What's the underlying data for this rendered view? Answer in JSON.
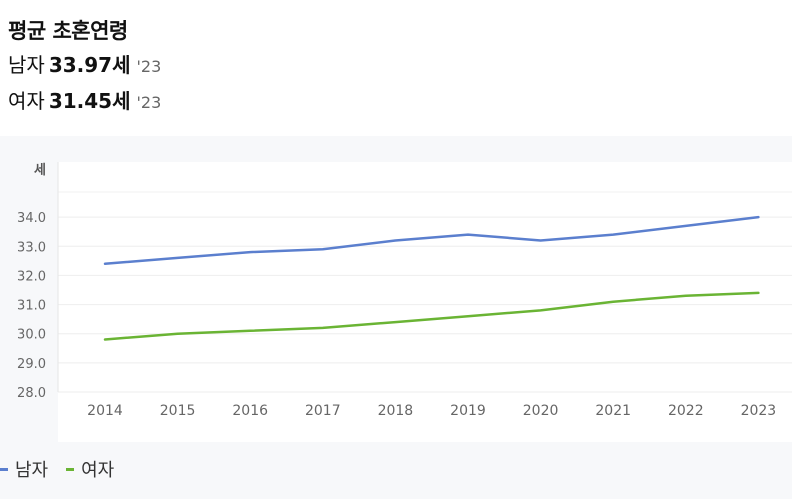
{
  "header": {
    "title": "평균 초혼연령",
    "male": {
      "label": "남자",
      "value": "33.97세",
      "year": "'23"
    },
    "female": {
      "label": "여자",
      "value": "31.45세",
      "year": "'23"
    }
  },
  "colors": {
    "male": "#5b7fce",
    "female": "#6ab434"
  },
  "chart_data": {
    "type": "line",
    "title": "",
    "ylabel": "세",
    "ylim": [
      28.0,
      35.0
    ],
    "yticks": [
      "28.0",
      "29.0",
      "30.0",
      "31.0",
      "32.0",
      "33.0",
      "34.0"
    ],
    "x": [
      "2014",
      "2015",
      "2016",
      "2017",
      "2018",
      "2019",
      "2020",
      "2021",
      "2022",
      "2023"
    ],
    "series": [
      {
        "name": "남자",
        "values": [
          32.4,
          32.6,
          32.8,
          32.9,
          33.2,
          33.4,
          33.2,
          33.4,
          33.7,
          34.0
        ]
      },
      {
        "name": "여자",
        "values": [
          29.8,
          30.0,
          30.1,
          30.2,
          30.4,
          30.6,
          30.8,
          31.1,
          31.3,
          31.4
        ]
      }
    ],
    "grid": true,
    "legend": "bottom-left"
  }
}
